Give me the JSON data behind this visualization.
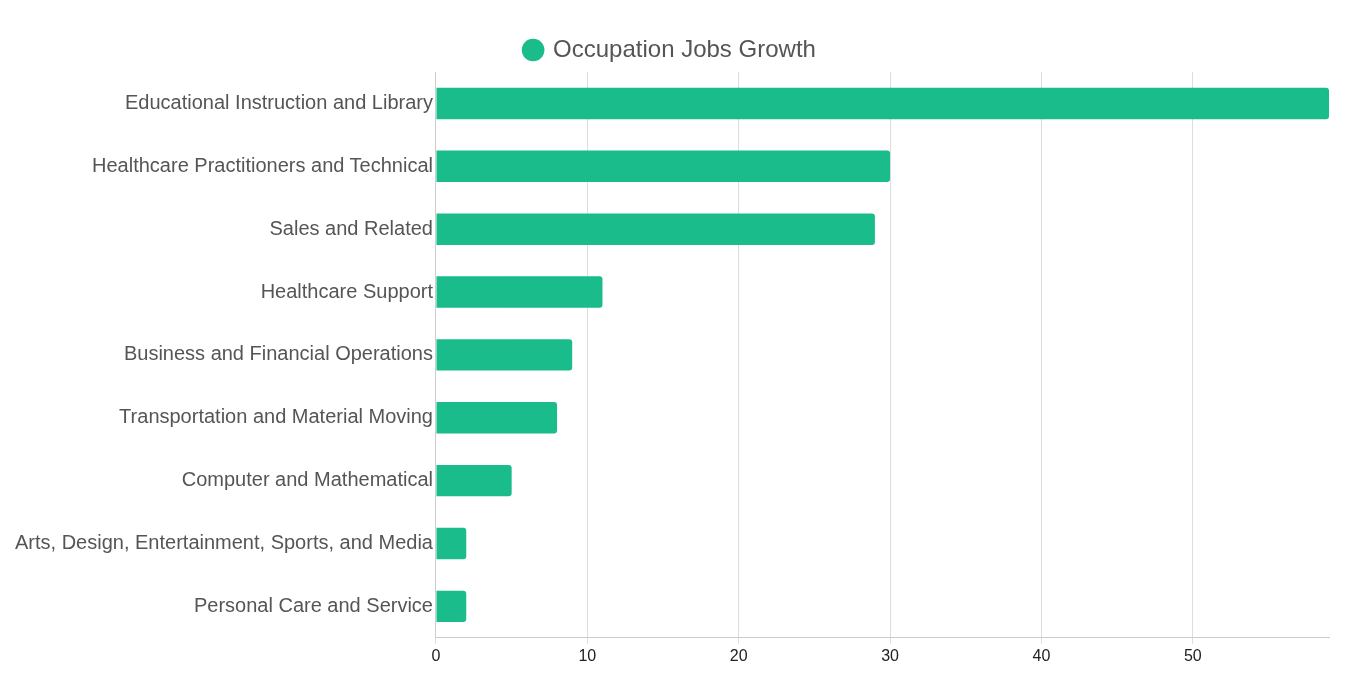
{
  "chart_data": {
    "type": "bar",
    "orientation": "horizontal",
    "categories": [
      "Educational Instruction and Library",
      "Healthcare Practitioners and Technical",
      "Sales and Related",
      "Healthcare Support",
      "Business and Financial Operations",
      "Transportation and Material Moving",
      "Computer and Mathematical",
      "Arts, Design, Entertainment, Sports, and Media",
      "Personal Care and Service"
    ],
    "series": [
      {
        "name": "Occupation Jobs Growth",
        "color": "#1abc8c",
        "values": [
          59,
          30,
          29,
          11,
          9,
          8,
          5,
          2,
          2
        ]
      }
    ],
    "xlim": [
      0,
      59
    ],
    "xticks": [
      0,
      10,
      20,
      30,
      40,
      50
    ],
    "grid": "x",
    "legend": "top"
  }
}
